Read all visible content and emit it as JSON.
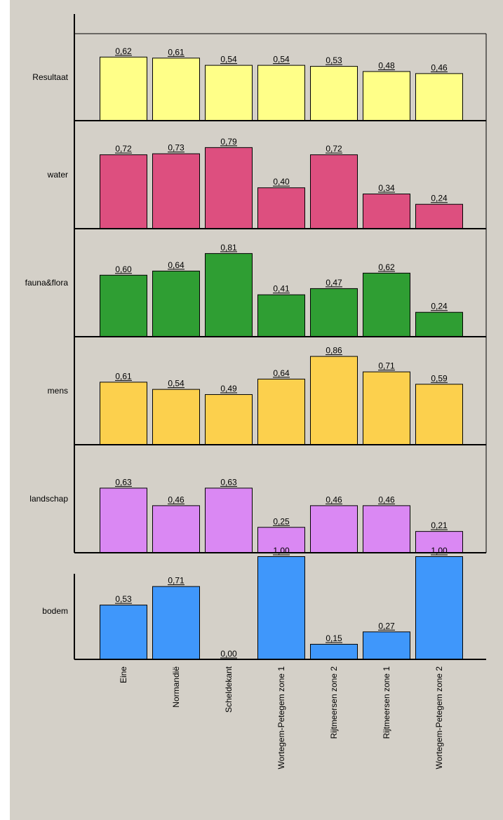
{
  "chart_data": {
    "type": "bar",
    "categories": [
      "Eine",
      "Normandië",
      "Scheldekant",
      "Wortegem-Petegem zone 1",
      "Rijtmeersen zone 2",
      "Rijtmeersen zone 1",
      "Wortegem-Petegem zone 2"
    ],
    "series": [
      {
        "name": "Resultaat",
        "color": "#ffff88",
        "values": [
          0.62,
          0.61,
          0.54,
          0.54,
          0.53,
          0.48,
          0.46
        ],
        "labels": [
          "0,62",
          "0,61",
          "0,54",
          "0,54",
          "0,53",
          "0,48",
          "0,46"
        ]
      },
      {
        "name": "water",
        "color": "#dd4f7f",
        "values": [
          0.72,
          0.73,
          0.79,
          0.4,
          0.72,
          0.34,
          0.24
        ],
        "labels": [
          "0,72",
          "0,73",
          "0,79",
          "0,40",
          "0,72",
          "0,34",
          "0,24"
        ]
      },
      {
        "name": "fauna&flora",
        "color": "#2f9e33",
        "values": [
          0.6,
          0.64,
          0.81,
          0.41,
          0.47,
          0.62,
          0.24
        ],
        "labels": [
          "0,60",
          "0,64",
          "0,81",
          "0,41",
          "0,47",
          "0,62",
          "0,24"
        ]
      },
      {
        "name": "mens",
        "color": "#fcd04d",
        "values": [
          0.61,
          0.54,
          0.49,
          0.64,
          0.86,
          0.71,
          0.59
        ],
        "labels": [
          "0,61",
          "0,54",
          "0,49",
          "0,64",
          "0,86",
          "0,71",
          "0,59"
        ]
      },
      {
        "name": "landschap",
        "color": "#da88f3",
        "values": [
          0.63,
          0.46,
          0.63,
          0.25,
          0.46,
          0.46,
          0.21
        ],
        "labels": [
          "0,63",
          "0,46",
          "0,63",
          "0,25",
          "0,46",
          "0,46",
          "0,21"
        ]
      },
      {
        "name": "bodem",
        "color": "#3f97fb",
        "values": [
          0.53,
          0.71,
          0.0,
          1.0,
          0.15,
          0.27,
          1.0
        ],
        "labels": [
          "0,53",
          "0,71",
          "0,00",
          "1,00",
          "0,15",
          "0,27",
          "1,00"
        ]
      }
    ],
    "ylim": [
      0,
      1
    ],
    "grid": false,
    "legend": "none"
  }
}
